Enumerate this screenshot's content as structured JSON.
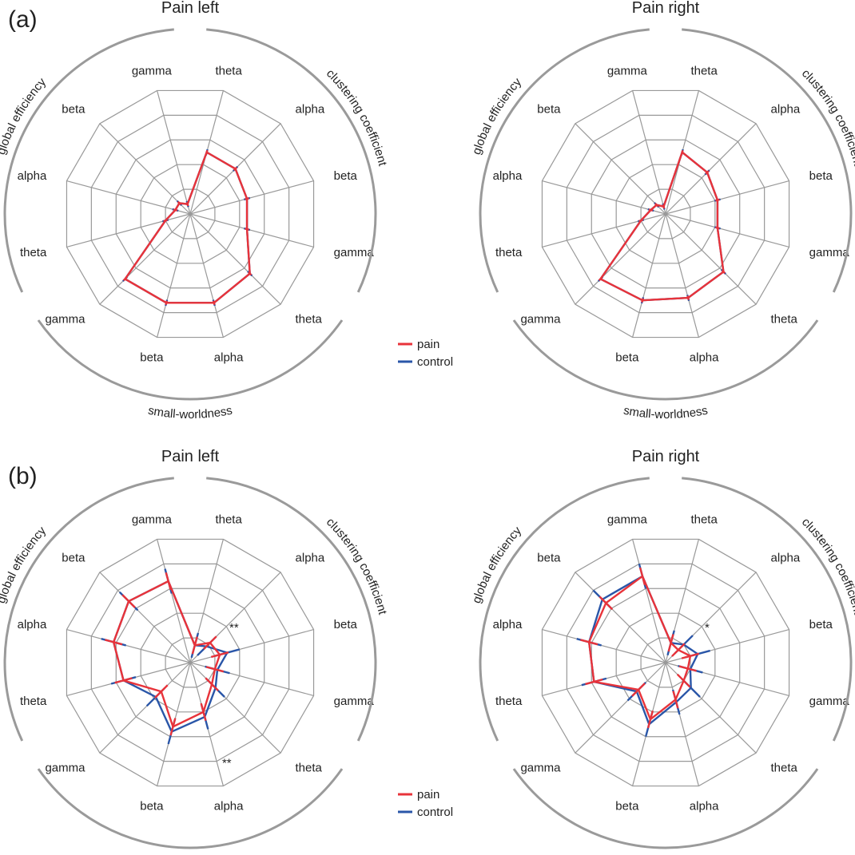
{
  "figure": {
    "panels": [
      {
        "label": "(a)"
      },
      {
        "label": "(b)"
      }
    ]
  },
  "legend": [
    {
      "name": "pain",
      "color": "#e8333a"
    },
    {
      "name": "control",
      "color": "#2a56a8"
    }
  ],
  "colors": {
    "pain": "#e8333a",
    "control": "#2a56a8",
    "grid": "#999999",
    "arc": "#9a9a9a"
  },
  "chart_data": [
    {
      "type": "radar",
      "panel": "(a)",
      "title": "Pain left",
      "axes": [
        "theta",
        "alpha",
        "beta",
        "gamma",
        "theta",
        "alpha",
        "beta",
        "gamma",
        "theta",
        "alpha",
        "beta",
        "gamma"
      ],
      "groups": [
        {
          "label": "clustering coefficient",
          "axes": [
            0,
            1,
            2,
            3
          ]
        },
        {
          "label": "small-worldness",
          "axes": [
            4,
            5,
            6,
            7
          ]
        },
        {
          "label": "global efficiency",
          "axes": [
            8,
            9,
            10,
            11
          ]
        }
      ],
      "rings": 5,
      "rmax": 5,
      "series": [
        {
          "name": "pain",
          "values": [
            2.5,
            2.5,
            2.3,
            2.3,
            3.3,
            3.6,
            3.6,
            3.6,
            1.0,
            0.6,
            0.6,
            0.4
          ]
        },
        {
          "name": "control",
          "values": [
            2.5,
            2.5,
            2.3,
            2.3,
            3.3,
            3.6,
            3.6,
            3.6,
            1.0,
            0.6,
            0.6,
            0.4
          ]
        }
      ],
      "annotations": []
    },
    {
      "type": "radar",
      "panel": "(a)",
      "title": "Pain right",
      "axes": [
        "theta",
        "alpha",
        "beta",
        "gamma",
        "theta",
        "alpha",
        "beta",
        "gamma",
        "theta",
        "alpha",
        "beta",
        "gamma"
      ],
      "groups": [
        {
          "label": "clustering coefficient",
          "axes": [
            0,
            1,
            2,
            3
          ]
        },
        {
          "label": "small-worldness",
          "axes": [
            4,
            5,
            6,
            7
          ]
        },
        {
          "label": "global efficiency",
          "axes": [
            8,
            9,
            10,
            11
          ]
        }
      ],
      "rings": 5,
      "rmax": 5,
      "series": [
        {
          "name": "pain",
          "values": [
            2.5,
            2.3,
            2.1,
            2.1,
            3.2,
            3.4,
            3.5,
            3.6,
            1.0,
            0.6,
            0.5,
            0.3
          ]
        },
        {
          "name": "control",
          "values": [
            2.5,
            2.3,
            2.1,
            2.1,
            3.2,
            3.4,
            3.5,
            3.6,
            1.0,
            0.6,
            0.5,
            0.3
          ]
        }
      ],
      "annotations": []
    },
    {
      "type": "radar",
      "panel": "(b)",
      "title": "Pain left",
      "axes": [
        "theta",
        "alpha",
        "beta",
        "gamma",
        "theta",
        "alpha",
        "beta",
        "gamma",
        "theta",
        "alpha",
        "beta",
        "gamma"
      ],
      "groups": [
        {
          "label": "clustering coefficient",
          "axes": [
            0,
            1,
            2,
            3
          ]
        },
        {
          "label": "small-worldness",
          "axes": [
            4,
            5,
            6,
            7
          ]
        },
        {
          "label": "global efficiency",
          "axes": [
            8,
            9,
            10,
            11
          ]
        }
      ],
      "rings": 5,
      "rmax": 5,
      "series": [
        {
          "name": "pain",
          "values": [
            0.7,
            1.1,
            1.2,
            1.0,
            1.2,
            2.0,
            2.6,
            1.6,
            2.7,
            3.1,
            3.4,
            3.3
          ]
        },
        {
          "name": "control",
          "values": [
            0.7,
            0.9,
            1.5,
            1.1,
            1.4,
            2.2,
            2.8,
            1.9,
            2.7,
            3.1,
            3.4,
            3.3
          ]
        }
      ],
      "annotations": [
        {
          "axis": 1,
          "r": 1.9,
          "text": "**"
        },
        {
          "axis": 5,
          "r": 4.1,
          "text": "**"
        }
      ]
    },
    {
      "type": "radar",
      "panel": "(b)",
      "title": "Pain right",
      "axes": [
        "theta",
        "alpha",
        "beta",
        "gamma",
        "theta",
        "alpha",
        "beta",
        "gamma",
        "theta",
        "alpha",
        "beta",
        "gamma"
      ],
      "groups": [
        {
          "label": "clustering coefficient",
          "axes": [
            0,
            1,
            2,
            3
          ]
        },
        {
          "label": "small-worldness",
          "axes": [
            4,
            5,
            6,
            7
          ]
        },
        {
          "label": "global efficiency",
          "axes": [
            8,
            9,
            10,
            11
          ]
        }
      ],
      "rings": 5,
      "rmax": 5,
      "series": [
        {
          "name": "pain",
          "values": [
            0.8,
            0.7,
            1.0,
            0.9,
            1.0,
            1.5,
            2.3,
            1.5,
            2.9,
            3.1,
            3.3,
            3.5
          ]
        },
        {
          "name": "control",
          "values": [
            0.8,
            1.0,
            1.3,
            1.0,
            1.4,
            1.6,
            2.5,
            1.6,
            2.9,
            3.1,
            3.5,
            3.5
          ]
        }
      ],
      "annotations": [
        {
          "axis": 1,
          "r": 1.9,
          "text": "*"
        }
      ]
    }
  ]
}
